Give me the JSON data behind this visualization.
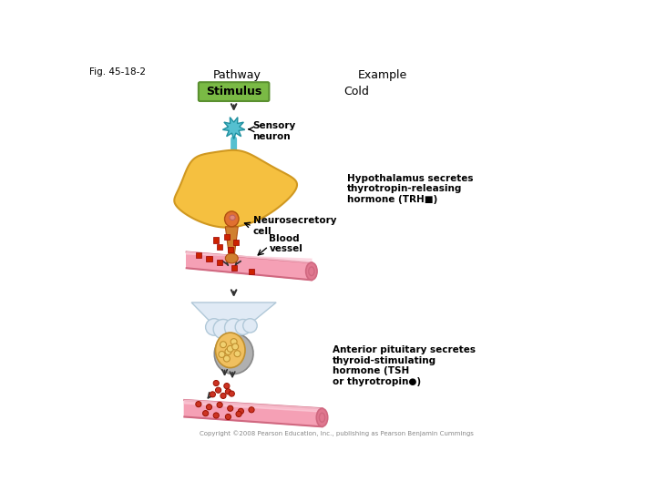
{
  "fig_label": "Fig. 45-18-2",
  "pathway_label": "Pathway",
  "example_label": "Example",
  "stimulus_text": "Stimulus",
  "cold_text": "Cold",
  "sensory_neuron_text": "Sensory\nneuron",
  "neurosecretory_text": "Neurosecretory\ncell",
  "blood_vessel_text": "Blood\nvessel",
  "hypothalamus_text": "Hypothalamus secretes\nthyrotropin-releasing\nhormone (TRH■)",
  "anterior_text": "Anterior pituitary secretes\nthyroid-stimulating\nhormone (TSH\nor thyrotropin●)",
  "copyright_text": "Copyright ©2008 Pearson Education, Inc., publishing as Pearson Benjamin Cummings",
  "bg_color": "#ffffff",
  "stimulus_box_color": "#7aba45",
  "stimulus_box_edge": "#5a9030",
  "sensory_cell_color": "#55c0d0",
  "sensory_cell_edge": "#2090a0",
  "hypothalamus_color": "#f5c040",
  "hypothalamus_edge": "#d09820",
  "neurosec_body_color": "#e07030",
  "neurosec_edge": "#b05010",
  "axon_color": "#d08030",
  "blood_vessel_fill": "#f5a0b5",
  "blood_vessel_edge": "#d06880",
  "blood_vessel_dark": "#e07890",
  "trh_color": "#cc2200",
  "tsh_dot_color": "#cc3322",
  "tsh_dot_edge": "#991100",
  "funnel_color": "#e0eaf5",
  "funnel_edge": "#b0c8d8",
  "pituitary_color": "#f0c060",
  "pituitary_edge": "#c09030",
  "gray_wrap_color": "#a0a0a0",
  "arrow_color": "#333333",
  "font_size_fig": 7.5,
  "font_size_label": 8.5,
  "font_size_annot": 7.5
}
